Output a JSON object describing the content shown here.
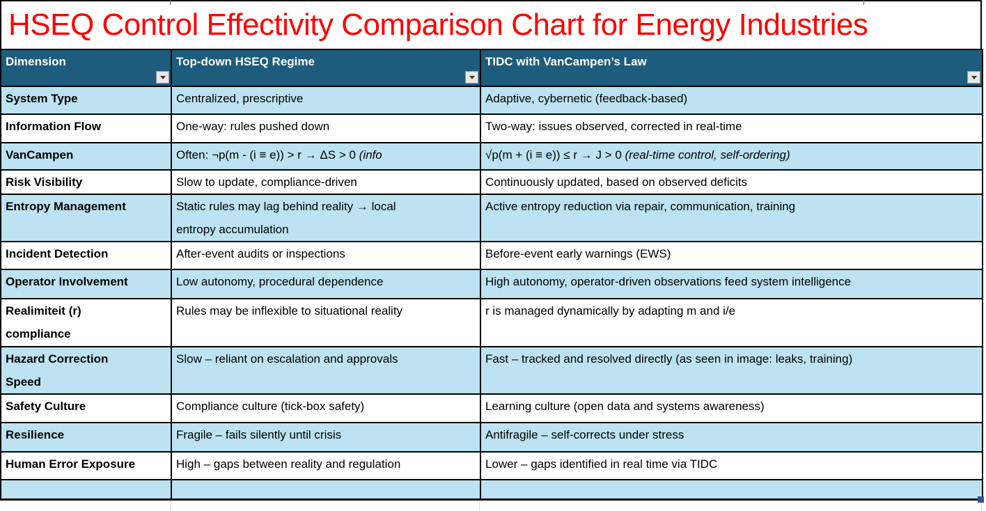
{
  "title": "HSEQ Control Effectivity Comparison Chart for Energy Industries",
  "colors": {
    "title_red": "#FF0000",
    "header_bg": "#1D5C7C",
    "header_text": "#FFFFFF",
    "shaded_row_bg": "#BDE3F2",
    "border": "#000000",
    "gridline_gray": "#D9D9D9",
    "fill_handle_blue": "#2F5496",
    "filter_button_bg": "#E8E8E8"
  },
  "header": {
    "columns": [
      {
        "label": "Dimension"
      },
      {
        "label": "Top-down HSEQ Regime"
      },
      {
        "label": "TIDC with VanCampen’s Law"
      }
    ],
    "filter_icon": "chevron-down"
  },
  "rows": [
    {
      "dim": "System Type",
      "topdown": "Centralized, prescriptive",
      "tidc": "Adaptive, cybernetic (feedback-based)",
      "shaded": true
    },
    {
      "dim": "Information Flow",
      "topdown": "One-way: rules pushed down",
      "tidc": "Two-way: issues observed, corrected in real-time",
      "shaded": false
    },
    {
      "dim": "VanCampen",
      "topdown": [
        {
          "t": "Often: ¬p(m - (i ≡ e)) > r → ΔS > 0 "
        },
        {
          "t": "(info",
          "italic": true
        }
      ],
      "tidc": [
        {
          "t": "√p(m + (i ≡ e)) ≤ r → J > 0 "
        },
        {
          "t": "(real-time control, self-ordering)",
          "italic": true
        }
      ],
      "shaded": true
    },
    {
      "dim": "Risk Visibility",
      "topdown": "Slow to update, compliance-driven",
      "tidc": "Continuously updated, based on observed deficits",
      "shaded": false
    },
    {
      "dim": "Entropy Management",
      "topdown": "Static rules may lag behind reality → local\nentropy accumulation",
      "tidc": "Active entropy reduction via repair, communication, training",
      "shaded": true
    },
    {
      "dim": "Incident Detection",
      "topdown": "After-event audits or inspections",
      "tidc": "Before-event early warnings (EWS)",
      "shaded": false
    },
    {
      "dim": "Operator Involvement",
      "topdown": "Low autonomy, procedural dependence",
      "tidc": "High autonomy, operator-driven observations feed system intelligence",
      "shaded": true
    },
    {
      "dim": "Realimiteit (r)\ncompliance",
      "topdown": "Rules may be inflexible to situational reality",
      "tidc": "r is managed dynamically by adapting m and i/e",
      "shaded": false
    },
    {
      "dim": "Hazard Correction\nSpeed",
      "topdown": "Slow – reliant on escalation and approvals",
      "tidc": "Fast – tracked and resolved directly (as seen in image: leaks, training)",
      "shaded": true
    },
    {
      "dim": "Safety Culture",
      "topdown": "Compliance culture (tick-box safety)",
      "tidc": "Learning culture (open data and systems awareness)",
      "shaded": false
    },
    {
      "dim": "Resilience",
      "topdown": "Fragile – fails silently until crisis",
      "tidc": "Antifragile – self-corrects under stress",
      "shaded": true
    },
    {
      "dim": "Human Error Exposure",
      "topdown": "High – gaps between reality and regulation",
      "tidc": "Lower – gaps identified in real time via TIDC",
      "shaded": false
    },
    {
      "dim": "",
      "topdown": "",
      "tidc": "",
      "shaded": true
    }
  ]
}
